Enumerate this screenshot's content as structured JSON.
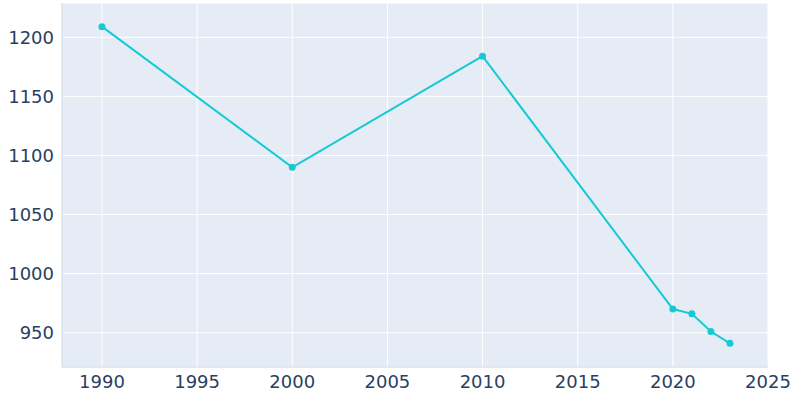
{
  "chart_data": {
    "type": "line",
    "x": [
      1990,
      2000,
      2010,
      2020,
      2021,
      2022,
      2023
    ],
    "values": [
      1209,
      1090,
      1184,
      970,
      966,
      951,
      941
    ],
    "color": "#17c9d3",
    "xlim": [
      1987.9,
      2025
    ],
    "xticks": [
      1990,
      1995,
      2000,
      2005,
      2010,
      2015,
      2020,
      2025
    ],
    "ylim": [
      921,
      1229
    ],
    "yticks": [
      950,
      1000,
      1050,
      1100,
      1150,
      1200
    ],
    "grid": true,
    "marker": "circle"
  }
}
